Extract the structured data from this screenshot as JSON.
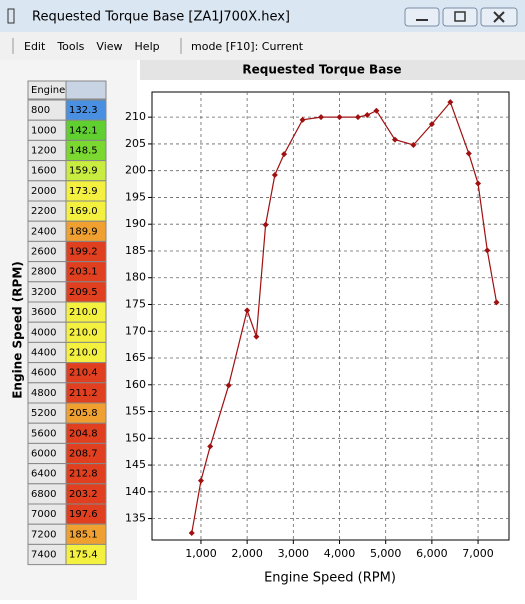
{
  "window": {
    "title": "Requested Torque Base [ZA1J700X.hex]"
  },
  "menu": {
    "items": [
      "Edit",
      "Tools",
      "View",
      "Help"
    ],
    "mode": "mode [F10]: Current"
  },
  "table": {
    "header": "Engine",
    "axis_label": "Engine Speed (RPM)",
    "cell_colors": [
      "#4a90e2",
      "#5fd030",
      "#7ad830",
      "#c8ec40",
      "#f4f040",
      "#f4f040",
      "#f0a030",
      "#e04020",
      "#e04020",
      "#e04020",
      "#f4f040",
      "#f4f040",
      "#f4f040",
      "#e04020",
      "#e04020",
      "#f0a030",
      "#e04020",
      "#e04020",
      "#e04020",
      "#e04020",
      "#e04020",
      "#f0a030",
      "#f4f040"
    ]
  },
  "chart_data": {
    "type": "line",
    "title": "Requested Torque Base",
    "xlabel": "Engine Speed (RPM)",
    "x": [
      800,
      1000,
      1200,
      1600,
      2000,
      2200,
      2400,
      2600,
      2800,
      3200,
      3600,
      4000,
      4400,
      4600,
      4800,
      5200,
      5600,
      6000,
      6400,
      6800,
      7000,
      7200,
      7400
    ],
    "values": [
      132.3,
      142.1,
      148.5,
      159.9,
      173.9,
      169.0,
      189.9,
      199.2,
      203.1,
      209.5,
      210.0,
      210.0,
      210.0,
      210.4,
      211.2,
      205.8,
      204.8,
      208.7,
      212.8,
      203.2,
      197.6,
      185.1,
      175.4
    ],
    "value_labels": [
      "132.3",
      "142.1",
      "148.5",
      "159.9",
      "173.9",
      "169.0",
      "189.9",
      "199.2",
      "203.1",
      "209.5",
      "210.0",
      "210.0",
      "210.0",
      "210.4",
      "211.2",
      "205.8",
      "204.8",
      "208.7",
      "212.8",
      "203.2",
      "197.6",
      "185.1",
      "175.4"
    ],
    "color": "#a01010",
    "xlim": [
      -60,
      7670
    ],
    "ylim": [
      131,
      214.7
    ],
    "xticks": [
      {
        "value": 1000,
        "label": "1,000"
      },
      {
        "value": 2000,
        "label": "2,000"
      },
      {
        "value": 3000,
        "label": "3,000"
      },
      {
        "value": 4000,
        "label": "4,000"
      },
      {
        "value": 5000,
        "label": "5,000"
      },
      {
        "value": 6000,
        "label": "6,000"
      },
      {
        "value": 7000,
        "label": "7,000"
      }
    ],
    "yticks": [
      135,
      140,
      145,
      150,
      155,
      160,
      165,
      170,
      175,
      180,
      185,
      190,
      195,
      200,
      205,
      210
    ],
    "grid": true
  }
}
